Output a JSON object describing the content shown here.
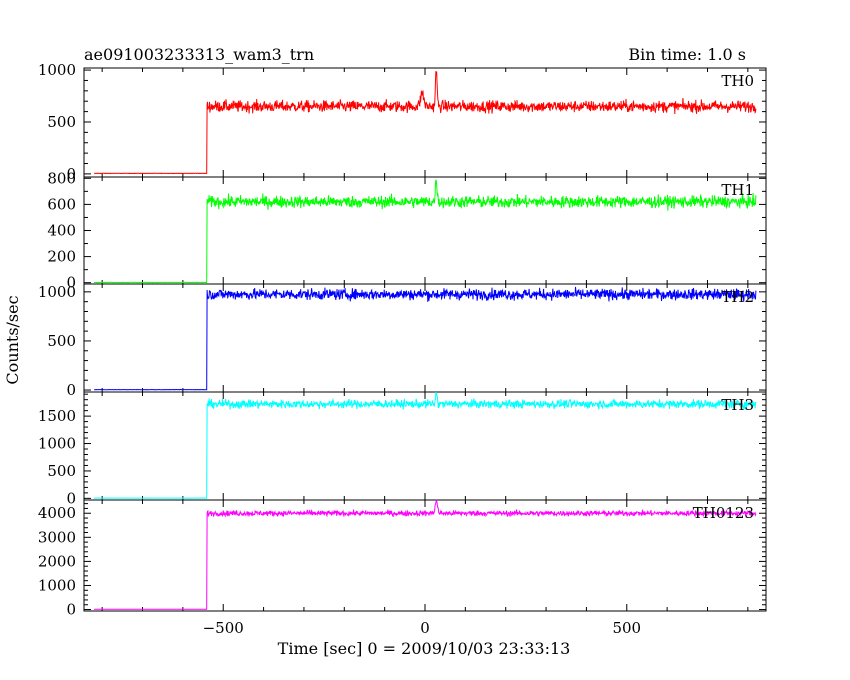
{
  "header": {
    "title": "ae091003233313_wam3_trn",
    "bin_time": "Bin time: 1.0 s"
  },
  "chart_data": {
    "type": "line",
    "xlabel": "Time [sec] 0 = 2009/10/03 23:33:13",
    "ylabel": "Counts/sec",
    "xlim": [
      -845,
      845
    ],
    "x_major_ticks": [
      -500,
      0,
      500
    ],
    "x_tick_labels": [
      "−500",
      "0",
      "500"
    ],
    "x_minor_step": 100,
    "data_range": [
      -820,
      820
    ],
    "rise_time": -540,
    "panels": [
      {
        "name": "TH0",
        "color": "#ff0000",
        "ylim": [
          -30,
          1020
        ],
        "ticks": [
          0,
          500,
          1000
        ],
        "tick_labels": [
          "0",
          "500",
          "1000"
        ],
        "minor_step": 100,
        "pre_level": 5,
        "post_level": 650,
        "noise": 55,
        "features": [
          {
            "t": -7,
            "peak": 780,
            "width": 4
          },
          {
            "t": 28,
            "peak": 1000,
            "width": 2
          }
        ]
      },
      {
        "name": "TH1",
        "color": "#00ff00",
        "ylim": [
          -10,
          810
        ],
        "ticks": [
          0,
          200,
          400,
          600,
          800
        ],
        "tick_labels": [
          "0",
          "200",
          "400",
          "600",
          "800"
        ],
        "minor_step": 100,
        "pre_level": 2,
        "post_level": 620,
        "noise": 45,
        "features": [
          {
            "t": 28,
            "peak": 800,
            "width": 2
          }
        ]
      },
      {
        "name": "TH2",
        "color": "#0000ff",
        "ylim": [
          -20,
          1080
        ],
        "ticks": [
          0,
          500,
          1000
        ],
        "tick_labels": [
          "0",
          "500",
          "1000"
        ],
        "minor_step": 100,
        "pre_level": 4,
        "post_level": 975,
        "noise": 55,
        "features": []
      },
      {
        "name": "TH3",
        "color": "#00ffff",
        "ylim": [
          -30,
          1940
        ],
        "ticks": [
          0,
          500,
          1000,
          1500
        ],
        "tick_labels": [
          "0",
          "500",
          "1000",
          "1500"
        ],
        "minor_step": 100,
        "pre_level": 5,
        "post_level": 1720,
        "noise": 75,
        "features": [
          {
            "t": 28,
            "peak": 1920,
            "width": 2
          }
        ]
      },
      {
        "name": "TH0123",
        "color": "#ff00ff",
        "ylim": [
          -60,
          4550
        ],
        "ticks": [
          0,
          1000,
          2000,
          3000,
          4000
        ],
        "tick_labels": [
          "0",
          "1000",
          "2000",
          "3000",
          "4000"
        ],
        "minor_step": 200,
        "pre_level": 10,
        "post_level": 4000,
        "noise": 110,
        "features": [
          {
            "t": 28,
            "peak": 4500,
            "width": 3
          }
        ]
      }
    ]
  }
}
